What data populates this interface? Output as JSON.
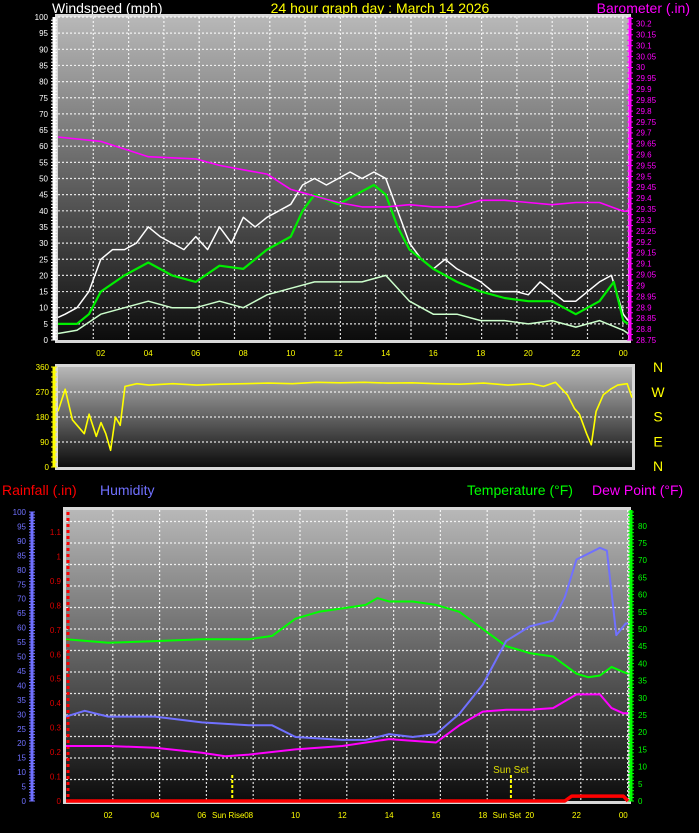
{
  "header": {
    "left_title": "Windspeed (mph)",
    "center_title": "24 hour graph day : March 14 2026",
    "right_title": "Barometer (.in)"
  },
  "legend_row": {
    "rainfall": "Rainfall (.in)",
    "humidity": "Humidity",
    "temperature": "Temperature (°F)",
    "dewpoint": "Dew Point (°F)"
  },
  "colors": {
    "gust": "#ffffff",
    "wind_avg": "#00ee00",
    "wind_speed": "#ccffcc",
    "barometer": "#ff00ff",
    "direction": "#ffff00",
    "rainfall": "#ff0000",
    "humidity": "#7070ff",
    "temperature": "#00ff00",
    "dewpoint": "#ff00ff",
    "time_labels": "#ffff00"
  },
  "chart_data": [
    {
      "type": "line",
      "title": "Windspeed (mph)",
      "right_axis_title": "Barometer (.in)",
      "x_unit": "hour of day",
      "xlim": [
        0.2,
        24.2
      ],
      "x_tick_labels": [
        "02",
        "04",
        "06",
        "08",
        "10",
        "12",
        "14",
        "16",
        "18",
        "20",
        "22",
        "00"
      ],
      "x_tick_hours": [
        2,
        4,
        6,
        8,
        10,
        12,
        14,
        16,
        18,
        20,
        22,
        24
      ],
      "ylim": [
        0,
        100
      ],
      "y_ticks": [
        0,
        5,
        10,
        15,
        20,
        25,
        30,
        35,
        40,
        45,
        50,
        55,
        60,
        65,
        70,
        75,
        80,
        85,
        90,
        95,
        100
      ],
      "y2lim": [
        28.75,
        30.23
      ],
      "y2_ticks": [
        "28.75",
        "28.8",
        "28.85",
        "28.9",
        "28.95",
        "29",
        "29.05",
        "29.1",
        "29.15",
        "29.2",
        "29.25",
        "29.3",
        "29.35",
        "29.4",
        "29.45",
        "29.5",
        "29.55",
        "29.6",
        "29.65",
        "29.7",
        "29.75",
        "29.8",
        "29.85",
        "29.9",
        "29.95",
        "30",
        "30.05",
        "30.1",
        "30.15",
        "30.2"
      ],
      "grid": true,
      "series": [
        {
          "key": "gust",
          "axis": "left",
          "x": [
            0.2,
            0.5,
            1,
            1.5,
            2,
            2.5,
            3,
            3.5,
            4,
            4.5,
            5,
            5.5,
            6,
            6.5,
            7,
            7.5,
            8,
            8.5,
            9,
            9.5,
            10,
            10.5,
            11,
            11.5,
            12,
            12.5,
            13,
            13.5,
            14,
            14.5,
            15,
            15.5,
            16,
            16.5,
            17,
            17.5,
            18,
            18.5,
            19,
            19.5,
            20,
            20.5,
            21,
            21.5,
            22,
            22.5,
            23,
            23.5,
            24,
            24.2
          ],
          "y": [
            7,
            8,
            10,
            15,
            25,
            28,
            28,
            30,
            35,
            32,
            30,
            28,
            32,
            28,
            35,
            30,
            38,
            35,
            38,
            40,
            42,
            48,
            50,
            48,
            50,
            52,
            50,
            52,
            50,
            40,
            30,
            25,
            22,
            25,
            22,
            20,
            18,
            15,
            15,
            15,
            14,
            18,
            15,
            12,
            12,
            15,
            18,
            20,
            8,
            6
          ]
        },
        {
          "key": "wind_avg",
          "axis": "left",
          "x": [
            0.2,
            1,
            1.5,
            2,
            3,
            4,
            5,
            6,
            7,
            8,
            9,
            10,
            10.5,
            11,
            12,
            12.5,
            13,
            13.5,
            14,
            14.5,
            15,
            16,
            17,
            18,
            19,
            20,
            21,
            22,
            23,
            23.6,
            24,
            24.2
          ],
          "y": [
            5,
            5,
            8,
            15,
            20,
            24,
            20,
            18,
            23,
            22,
            28,
            32,
            40,
            45,
            42,
            44,
            46,
            48,
            45,
            35,
            28,
            22,
            18,
            15,
            13,
            12,
            12,
            8,
            12,
            18,
            6,
            5
          ]
        },
        {
          "key": "wind_speed",
          "axis": "left",
          "x": [
            0.2,
            1,
            2,
            3,
            4,
            5,
            6,
            7,
            8,
            9,
            10,
            11,
            12,
            13,
            14,
            15,
            16,
            17,
            18,
            19,
            20,
            21,
            22,
            23,
            24,
            24.2
          ],
          "y": [
            2,
            3,
            8,
            10,
            12,
            10,
            10,
            12,
            10,
            14,
            16,
            18,
            18,
            18,
            20,
            12,
            8,
            8,
            6,
            6,
            5,
            6,
            4,
            6,
            3,
            2
          ]
        },
        {
          "key": "barometer",
          "axis": "right",
          "x": [
            0.2,
            2,
            4,
            6,
            7,
            8,
            9,
            10,
            11,
            12,
            13,
            14,
            15,
            16,
            17,
            18,
            19,
            20,
            21,
            22,
            23,
            24,
            24.2
          ],
          "y": [
            29.68,
            29.66,
            29.59,
            29.58,
            29.55,
            29.53,
            29.51,
            29.44,
            29.41,
            29.38,
            29.36,
            29.36,
            29.37,
            29.36,
            29.36,
            29.39,
            29.39,
            29.38,
            29.37,
            29.38,
            29.38,
            29.34,
            29.34
          ]
        }
      ]
    },
    {
      "type": "line",
      "xlim": [
        0.2,
        24.2
      ],
      "ylim": [
        0,
        360
      ],
      "y_ticks": [
        0,
        90,
        180,
        270,
        360
      ],
      "compass_labels": [
        "N",
        "W",
        "S",
        "E",
        "N"
      ],
      "grid": true,
      "series": [
        {
          "key": "direction",
          "x": [
            0.2,
            0.5,
            0.8,
            1,
            1.3,
            1.5,
            1.8,
            2,
            2.2,
            2.4,
            2.6,
            2.8,
            3,
            3.5,
            4,
            5,
            6,
            7,
            8,
            9,
            10,
            11,
            12,
            13,
            14,
            15,
            16,
            17,
            18,
            19,
            20,
            20.5,
            21,
            21.5,
            21.8,
            22,
            22.3,
            22.5,
            22.7,
            23,
            23.3,
            23.6,
            24,
            24.2
          ],
          "y": [
            200,
            280,
            170,
            150,
            120,
            190,
            110,
            160,
            120,
            60,
            180,
            150,
            290,
            300,
            295,
            300,
            295,
            298,
            300,
            302,
            300,
            305,
            303,
            305,
            302,
            303,
            300,
            298,
            302,
            295,
            300,
            290,
            305,
            260,
            210,
            190,
            120,
            80,
            200,
            260,
            280,
            295,
            300,
            250
          ]
        }
      ]
    },
    {
      "type": "line",
      "xlim": [
        0.2,
        24.2
      ],
      "left_outer_axis": {
        "title": "Humidity",
        "ylim": [
          0,
          100
        ],
        "ticks": [
          0,
          5,
          10,
          15,
          20,
          25,
          30,
          35,
          40,
          45,
          50,
          55,
          60,
          65,
          70,
          75,
          80,
          85,
          90,
          95,
          100
        ]
      },
      "left_inner_axis": {
        "title": "Rainfall (.in)",
        "ylim": [
          0,
          1.19
        ],
        "ticks": [
          "0",
          "0.1",
          "0.2",
          "0.3",
          "0.4",
          "0.5",
          "0.6",
          "0.7",
          "0.8",
          "0.9",
          "1",
          "1.1"
        ]
      },
      "right_axis": {
        "title": "Temperature (°F) Dew Point (°F)",
        "ylim": [
          0,
          84.6
        ],
        "ticks": [
          0,
          5,
          10,
          15,
          20,
          25,
          30,
          35,
          40,
          45,
          50,
          55,
          60,
          65,
          70,
          75,
          80
        ]
      },
      "x_tick_labels": [
        "02",
        "04",
        "06",
        "08",
        "10",
        "12",
        "14",
        "16",
        "18",
        "20",
        "22",
        "00"
      ],
      "x_tick_hours": [
        2,
        4,
        6,
        8,
        10,
        12,
        14,
        16,
        18,
        20,
        22,
        24
      ],
      "annotations": [
        {
          "label": "Sun Rise",
          "hour": 7.3
        },
        {
          "label": "Sun Set",
          "hour": 19.2
        }
      ],
      "grid": true,
      "series": [
        {
          "key": "temperature",
          "axis": "right",
          "x": [
            0.2,
            2,
            4,
            6,
            8,
            9,
            10,
            11,
            12,
            13,
            13.5,
            14,
            15,
            16,
            17,
            18,
            19,
            20,
            21,
            22,
            22.5,
            23,
            23.5,
            24,
            24.2
          ],
          "y": [
            47,
            46,
            46.5,
            47,
            47,
            48,
            53,
            55,
            56,
            57,
            59,
            58,
            58,
            57,
            55,
            50,
            45,
            43,
            42,
            37,
            36,
            36.5,
            39,
            37.5,
            37
          ]
        },
        {
          "key": "humidity",
          "axis": "left_outer",
          "x": [
            0.2,
            1,
            2,
            4,
            6,
            8,
            9,
            10,
            12,
            13,
            14,
            15,
            16,
            17,
            18,
            19,
            20,
            21,
            21.5,
            22,
            23,
            23.3,
            23.7,
            24.1,
            24.2
          ],
          "y": [
            29,
            31,
            29,
            29,
            27,
            26,
            26,
            22,
            21,
            21,
            23,
            22,
            23,
            30,
            40,
            55,
            60,
            62,
            70,
            83,
            87,
            86,
            57,
            61,
            61
          ]
        },
        {
          "key": "dewpoint",
          "axis": "right",
          "x": [
            0.2,
            2,
            4,
            6,
            7,
            8,
            10,
            12,
            14,
            16,
            17,
            18,
            19,
            20,
            21,
            22,
            23,
            23.5,
            24,
            24.2
          ],
          "y": [
            16,
            16,
            15.5,
            14,
            13,
            13.5,
            15,
            16,
            18,
            17,
            22,
            26,
            26.5,
            26.5,
            27,
            31,
            31,
            27,
            25.5,
            25.5
          ]
        },
        {
          "key": "rainfall",
          "axis": "left_inner",
          "x": [
            0.2,
            21.5,
            21.8,
            24,
            24.2
          ],
          "y": [
            0,
            0,
            0.02,
            0.02,
            0
          ]
        }
      ]
    }
  ]
}
